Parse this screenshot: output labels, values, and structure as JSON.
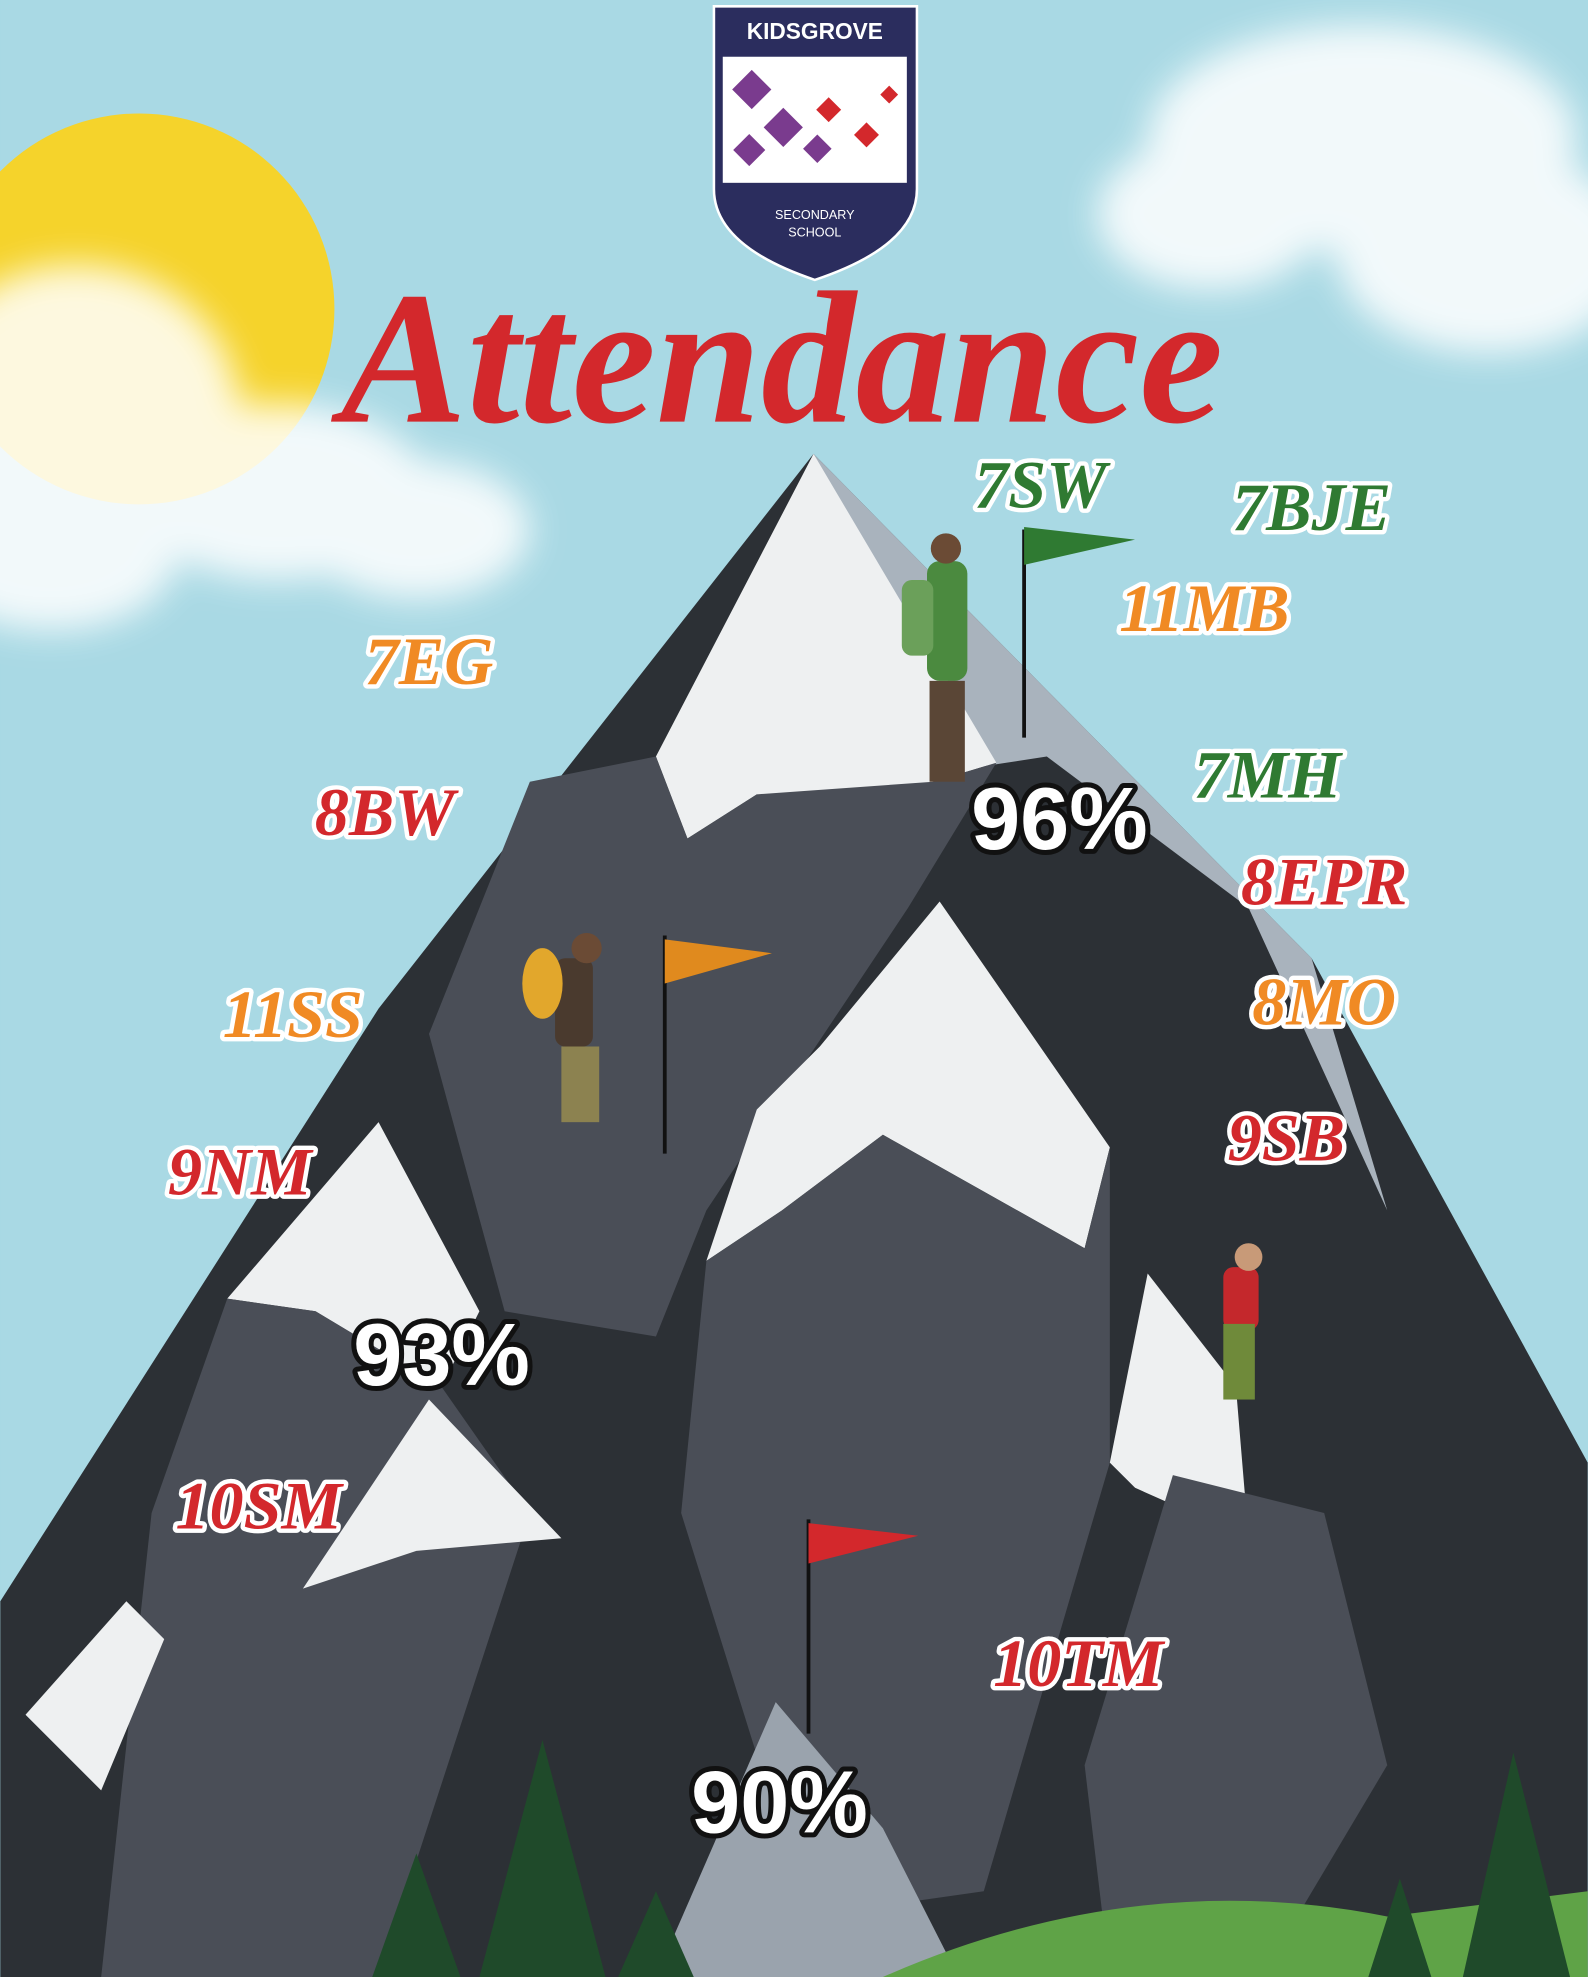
{
  "logo": {
    "name": "KIDSGROVE",
    "subtitle": [
      "SECONDARY",
      "SCHOOL"
    ]
  },
  "title": "Attendance",
  "levels": [
    "96%",
    "93%",
    "90%"
  ],
  "classes": [
    "7SW",
    "7BJE",
    "11MB",
    "7EG",
    "7MH",
    "8BW",
    "8EPR",
    "8MO",
    "11SS",
    "9SB",
    "9NM",
    "10SM",
    "10TM"
  ]
}
